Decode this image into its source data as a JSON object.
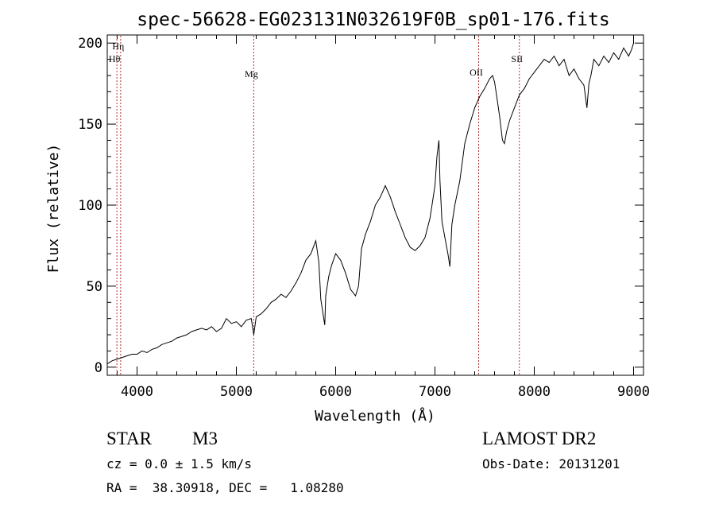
{
  "chart_data": {
    "type": "line",
    "title": "spec-56628-EG023131N032619F0B_sp01-176.fits",
    "xlabel": "Wavelength (Å)",
    "ylabel": "Flux (relative)",
    "xlim": [
      3700,
      9100
    ],
    "ylim": [
      -5,
      205
    ],
    "xticks": [
      4000,
      5000,
      6000,
      7000,
      8000,
      9000
    ],
    "yticks": [
      0,
      50,
      100,
      150,
      200
    ],
    "grid": false,
    "line_color": "#000000",
    "marker_color": "#b03030",
    "lines": [
      {
        "label": "Hη",
        "x": 3835
      },
      {
        "label": "Hθ",
        "x": 3797
      },
      {
        "label": "Mg",
        "x": 5175
      },
      {
        "label": "OII",
        "x": 7440
      },
      {
        "label": "SII",
        "x": 7850
      }
    ],
    "series": [
      {
        "x": [
          3700,
          3750,
          3800,
          3850,
          3900,
          3950,
          4000,
          4050,
          4100,
          4150,
          4200,
          4250,
          4300,
          4350,
          4400,
          4450,
          4500,
          4550,
          4600,
          4650,
          4700,
          4750,
          4800,
          4850,
          4900,
          4950,
          5000,
          5050,
          5100,
          5150,
          5175,
          5200,
          5250,
          5300,
          5350,
          5400,
          5450,
          5500,
          5550,
          5600,
          5650,
          5700,
          5750,
          5800,
          5830,
          5850,
          5880,
          5890,
          5900,
          5930,
          5960,
          6000,
          6050,
          6100,
          6150,
          6200,
          6230,
          6260,
          6300,
          6350,
          6400,
          6450,
          6500,
          6550,
          6600,
          6650,
          6700,
          6750,
          6800,
          6850,
          6900,
          6950,
          7000,
          7020,
          7040,
          7050,
          7070,
          7100,
          7130,
          7150,
          7170,
          7200,
          7250,
          7300,
          7350,
          7400,
          7450,
          7500,
          7550,
          7580,
          7600,
          7620,
          7650,
          7680,
          7700,
          7720,
          7750,
          7800,
          7850,
          7900,
          7950,
          8000,
          8050,
          8100,
          8150,
          8200,
          8250,
          8300,
          8350,
          8400,
          8450,
          8500,
          8530,
          8550,
          8570,
          8600,
          8650,
          8700,
          8750,
          8800,
          8850,
          8900,
          8950,
          8980,
          9000
        ],
        "values": [
          2,
          4,
          5,
          6,
          7,
          8,
          8,
          10,
          9,
          11,
          12,
          14,
          15,
          16,
          18,
          19,
          20,
          22,
          23,
          24,
          23,
          25,
          22,
          24,
          30,
          27,
          28,
          25,
          29,
          30,
          20,
          31,
          33,
          36,
          40,
          42,
          45,
          43,
          47,
          52,
          58,
          66,
          70,
          78,
          65,
          42,
          30,
          26,
          44,
          56,
          63,
          70,
          66,
          58,
          48,
          44,
          50,
          73,
          82,
          90,
          100,
          105,
          112,
          105,
          96,
          88,
          80,
          74,
          72,
          75,
          80,
          92,
          112,
          130,
          140,
          115,
          90,
          80,
          70,
          62,
          88,
          100,
          115,
          138,
          150,
          160,
          167,
          172,
          178,
          180,
          176,
          168,
          155,
          140,
          138,
          145,
          152,
          160,
          168,
          172,
          178,
          182,
          186,
          190,
          188,
          192,
          186,
          190,
          180,
          184,
          178,
          174,
          160,
          175,
          180,
          190,
          186,
          192,
          188,
          194,
          190,
          197,
          192,
          196,
          200
        ]
      }
    ]
  },
  "info": {
    "object_type": "STAR",
    "subclass": "M3",
    "survey": "LAMOST DR2",
    "cz": "cz = 0.0 ± 1.5 km/s",
    "obs_date": "Obs-Date: 20131201",
    "radec": "RA =  38.30918, DEC =   1.08280"
  }
}
